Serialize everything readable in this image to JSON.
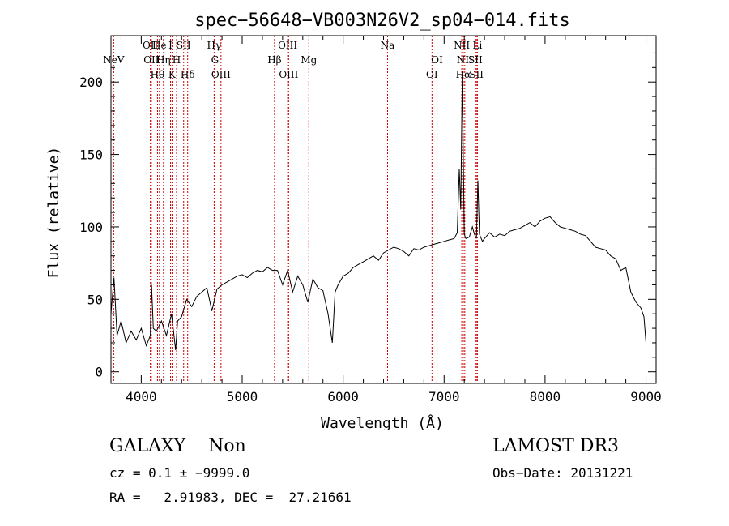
{
  "chart_data": {
    "type": "line",
    "title": "spec−56648−VB003N26V2_sp04−014.fits",
    "xlabel": "Wavelength (Å)",
    "ylabel": "Flux (relative)",
    "xlim": [
      3700,
      9100
    ],
    "ylim": [
      -8,
      232
    ],
    "xticks": [
      4000,
      5000,
      6000,
      7000,
      8000,
      9000
    ],
    "yticks": [
      0,
      50,
      100,
      150,
      200
    ],
    "grid": false,
    "line_color": "#000000",
    "marker_color": "#cc0000",
    "series": [
      {
        "x": [
          3700,
          3730,
          3760,
          3800,
          3850,
          3900,
          3950,
          4000,
          4050,
          4090,
          4102,
          4120,
          4150,
          4200,
          4250,
          4300,
          4340,
          4360,
          4400,
          4450,
          4500,
          4550,
          4600,
          4650,
          4700,
          4750,
          4800,
          4850,
          4900,
          4950,
          5000,
          5050,
          5100,
          5150,
          5200,
          5250,
          5300,
          5350,
          5400,
          5450,
          5500,
          5550,
          5600,
          5650,
          5700,
          5750,
          5800,
          5850,
          5893,
          5920,
          5950,
          6000,
          6050,
          6100,
          6150,
          6200,
          6250,
          6300,
          6350,
          6400,
          6450,
          6500,
          6550,
          6600,
          6650,
          6700,
          6750,
          6800,
          6850,
          6900,
          6950,
          7000,
          7050,
          7100,
          7130,
          7150,
          7165,
          7180,
          7200,
          7215,
          7250,
          7280,
          7300,
          7320,
          7335,
          7350,
          7380,
          7400,
          7450,
          7500,
          7550,
          7600,
          7650,
          7700,
          7750,
          7800,
          7850,
          7900,
          7950,
          8000,
          8050,
          8100,
          8150,
          8200,
          8250,
          8300,
          8350,
          8400,
          8450,
          8500,
          8550,
          8600,
          8650,
          8700,
          8750,
          8800,
          8850,
          8900,
          8950,
          8980,
          9000
        ],
        "y": [
          40,
          65,
          25,
          35,
          20,
          28,
          22,
          30,
          18,
          25,
          60,
          30,
          28,
          35,
          25,
          40,
          15,
          35,
          38,
          50,
          45,
          52,
          55,
          58,
          42,
          57,
          60,
          62,
          64,
          66,
          67,
          65,
          68,
          70,
          69,
          72,
          70,
          70,
          60,
          70,
          55,
          66,
          60,
          48,
          64,
          58,
          56,
          40,
          20,
          55,
          60,
          66,
          68,
          72,
          74,
          76,
          78,
          80,
          77,
          82,
          84,
          86,
          85,
          83,
          80,
          85,
          84,
          86,
          87,
          88,
          89,
          90,
          91,
          92,
          96,
          140,
          112,
          205,
          95,
          92,
          93,
          100,
          95,
          92,
          132,
          95,
          90,
          92,
          96,
          93,
          95,
          94,
          97,
          98,
          99,
          101,
          103,
          100,
          104,
          106,
          107,
          103,
          100,
          99,
          98,
          97,
          95,
          94,
          90,
          86,
          85,
          84,
          80,
          78,
          70,
          72,
          55,
          48,
          44,
          38,
          20
        ]
      }
    ],
    "line_markers": [
      {
        "x": 3727,
        "row": 1,
        "label": "NeV"
      },
      {
        "x": 4090,
        "row": 0,
        "label": "OII"
      },
      {
        "x": 4100,
        "row": 1,
        "label": "OII"
      },
      {
        "x": 4161,
        "row": 2,
        "label": "Hθ"
      },
      {
        "x": 4180,
        "row": 0,
        "label": "He"
      },
      {
        "x": 4220,
        "row": 1,
        "label": "Hη"
      },
      {
        "x": 4290,
        "row": 0,
        "label": "I"
      },
      {
        "x": 4305,
        "row": 2,
        "label": "K"
      },
      {
        "x": 4350,
        "row": 1,
        "label": "H"
      },
      {
        "x": 4420,
        "row": 0,
        "label": "SII"
      },
      {
        "x": 4460,
        "row": 2,
        "label": "Hδ"
      },
      {
        "x": 4722,
        "row": 0,
        "label": "Hγ"
      },
      {
        "x": 4730,
        "row": 1,
        "label": "G"
      },
      {
        "x": 4790,
        "row": 2,
        "label": "OIII"
      },
      {
        "x": 5320,
        "row": 1,
        "label": "Hβ"
      },
      {
        "x": 5450,
        "row": 0,
        "label": "OIII"
      },
      {
        "x": 5460,
        "row": 2,
        "label": "OIII"
      },
      {
        "x": 5660,
        "row": 1,
        "label": "Mg"
      },
      {
        "x": 6440,
        "row": 0,
        "label": "Na"
      },
      {
        "x": 6930,
        "row": 1,
        "label": "OI"
      },
      {
        "x": 6880,
        "row": 2,
        "label": "OI"
      },
      {
        "x": 7175,
        "row": 0,
        "label": "NII"
      },
      {
        "x": 7205,
        "row": 1,
        "label": "NII"
      },
      {
        "x": 7190,
        "row": 2,
        "label": "Hα"
      },
      {
        "x": 7330,
        "row": 0,
        "label": "Li"
      },
      {
        "x": 7310,
        "row": 1,
        "label": "SII"
      },
      {
        "x": 7320,
        "row": 2,
        "label": "SII"
      }
    ]
  },
  "info": {
    "class_line": "GALAXY    Non",
    "cz_line": "cz = 0.1 ± −9999.0",
    "coords_line": "RA =   2.91983, DEC =  27.21661",
    "survey": "LAMOST DR3",
    "obs_date": "Obs−Date: 20131221"
  }
}
